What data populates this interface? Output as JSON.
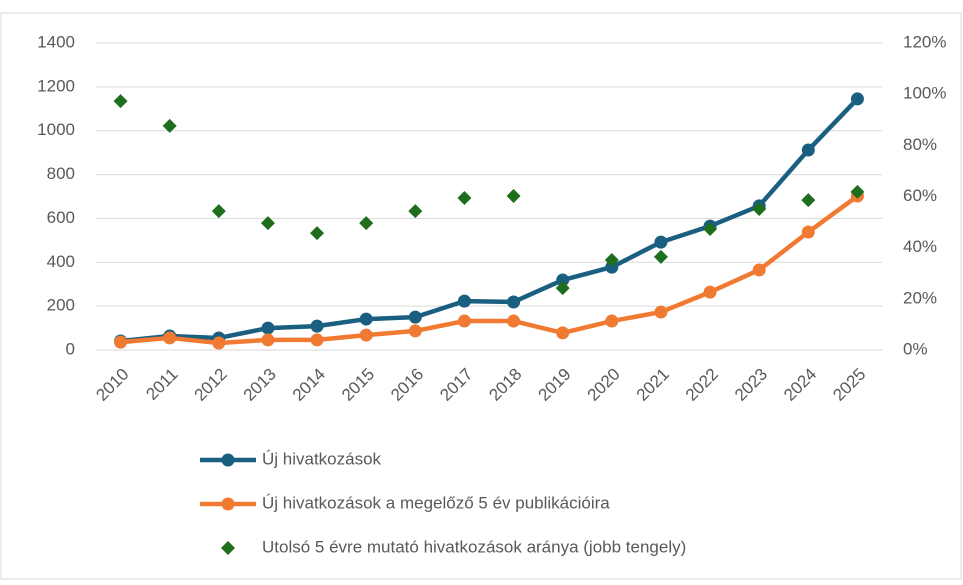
{
  "chart_data": {
    "type": "line",
    "categories": [
      "2010",
      "2011",
      "2012",
      "2013",
      "2014",
      "2015",
      "2016",
      "2017",
      "2018",
      "2019",
      "2020",
      "2021",
      "2022",
      "2023",
      "2024",
      "2025"
    ],
    "series": [
      {
        "name": "Új hivatkozások",
        "type": "line",
        "color": "#1b5f80",
        "values": [
          41,
          64,
          55,
          100,
          109,
          141,
          150,
          223,
          219,
          319,
          378,
          492,
          565,
          657,
          912,
          1145
        ]
      },
      {
        "name": "Új hivatkozások a megelőző 5 év publikációira",
        "type": "line",
        "color": "#f07a31",
        "values": [
          36,
          55,
          32,
          46,
          46,
          68,
          87,
          132,
          132,
          78,
          132,
          173,
          264,
          365,
          538,
          702
        ]
      },
      {
        "name": "Utolsó 5 évre mutató hivatkozások aránya (jobb tengely)",
        "type": "scatter",
        "color": "#1e6e1e",
        "axis": "y2",
        "values": [
          97.3,
          87.6,
          54.3,
          49.6,
          45.7,
          49.6,
          54.3,
          59.4,
          60.2,
          24.2,
          35.2,
          36.4,
          47.3,
          55.1,
          58.6,
          61.8
        ]
      }
    ],
    "ylim": [
      0,
      1400
    ],
    "yticks": [
      0,
      200,
      400,
      600,
      800,
      1000,
      {
        "value": 1200,
        "label": "1200"
      },
      1400
    ],
    "y2lim": [
      0,
      120
    ],
    "y2ticks": [
      {
        "value": 0,
        "label": "0%"
      },
      {
        "value": 20,
        "label": "20%"
      },
      {
        "value": 40,
        "label": "40%"
      },
      {
        "value": 60,
        "label": "60%"
      },
      {
        "value": 80,
        "label": "80%"
      },
      {
        "value": 100,
        "label": "100%"
      },
      {
        "value": 120,
        "label": "120%"
      }
    ],
    "grid": true,
    "legend": "bottom"
  }
}
